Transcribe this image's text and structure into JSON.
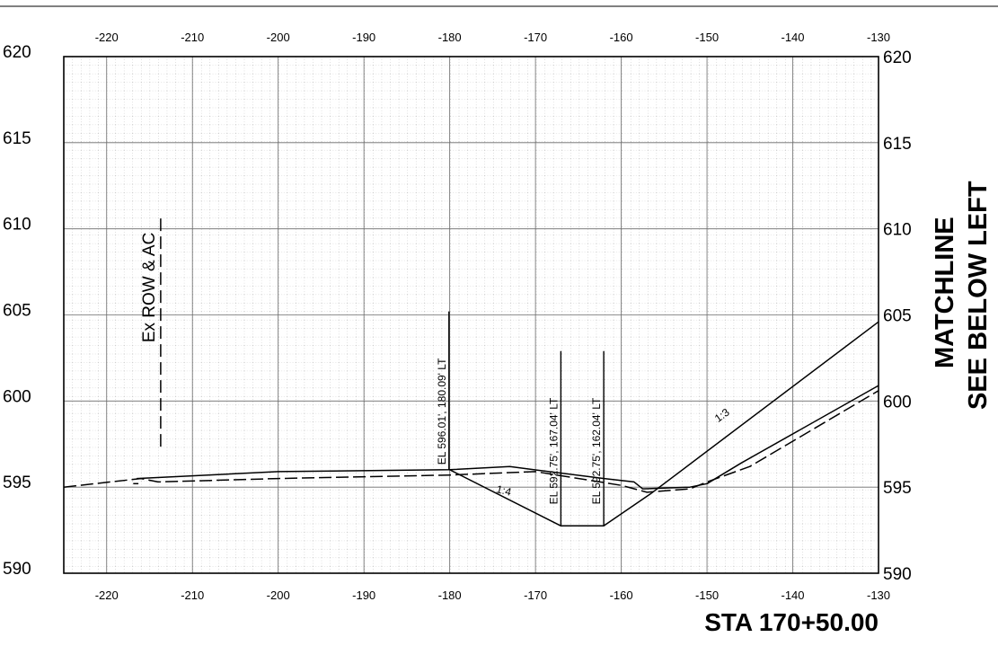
{
  "sheet": {
    "station_title": "STA 170+50.00",
    "matchline_line1": "MATCHLINE",
    "matchline_line2": "SEE BELOW LEFT"
  },
  "chart_data": {
    "type": "line",
    "x_ticks": [
      -220,
      -210,
      -200,
      -190,
      -180,
      -170,
      -160,
      -150,
      -140,
      -130
    ],
    "y_ticks": [
      620,
      615,
      610,
      605,
      600,
      595,
      590
    ],
    "xlim": [
      -225,
      -130
    ],
    "ylim": [
      590,
      620
    ],
    "grid": true,
    "series": [
      {
        "style": "solid",
        "points": [
          [
            -216.5,
            595.5
          ],
          [
            -200,
            595.9
          ],
          [
            -180,
            596.01
          ],
          [
            -173,
            596.2
          ],
          [
            -170,
            596.0
          ],
          [
            -162,
            595.5
          ],
          [
            -158.5,
            595.3
          ],
          [
            -157.5,
            594.9
          ],
          [
            -152,
            595.0
          ],
          [
            -150,
            595.2
          ],
          [
            -146,
            596.4
          ],
          [
            -130,
            600.9
          ]
        ]
      },
      {
        "style": "dashed",
        "points": [
          [
            -225,
            595.0
          ],
          [
            -216,
            595.5
          ],
          [
            -214,
            595.3
          ],
          [
            -200,
            595.5
          ],
          [
            -180,
            595.7
          ],
          [
            -170,
            595.9
          ],
          [
            -160,
            595.1
          ],
          [
            -157,
            594.7
          ],
          [
            -152,
            594.9
          ],
          [
            -150,
            595.3
          ],
          [
            -145,
            596.2
          ],
          [
            -130,
            600.6
          ]
        ]
      },
      {
        "style": "solid",
        "points": [
          [
            -180,
            596.01
          ],
          [
            -167.04,
            592.75
          ],
          [
            -162.04,
            592.75
          ],
          [
            -156.6,
            594.6
          ],
          [
            -130,
            604.6
          ]
        ]
      },
      {
        "style": "solid",
        "points": [
          [
            -216.9,
            595.2
          ],
          [
            -216.3,
            595.2
          ]
        ]
      }
    ],
    "annotations": [
      {
        "text": "EL 596.01', 180.09' LT",
        "x": -180.09,
        "y": 596.01,
        "marker_top": 605.2
      },
      {
        "text": "EL 592.75', 167.04' LT",
        "x": -167.04,
        "y": 592.75,
        "marker_top": 602.9
      },
      {
        "text": "EL 592.75', 162.04' LT",
        "x": -162.04,
        "y": 592.75,
        "marker_top": 602.9
      },
      {
        "text": "1:4",
        "x": -173.8,
        "y": 594.6,
        "angle": 14
      },
      {
        "text": "1:3",
        "x": -148.0,
        "y": 599.0,
        "angle": -36
      },
      {
        "text": "Ex ROW & AC",
        "x": -216.5,
        "y": 605.0,
        "angle": -90,
        "marker_x": -213.7,
        "marker_top": 610.6,
        "marker_bottom": 597.2
      }
    ]
  }
}
